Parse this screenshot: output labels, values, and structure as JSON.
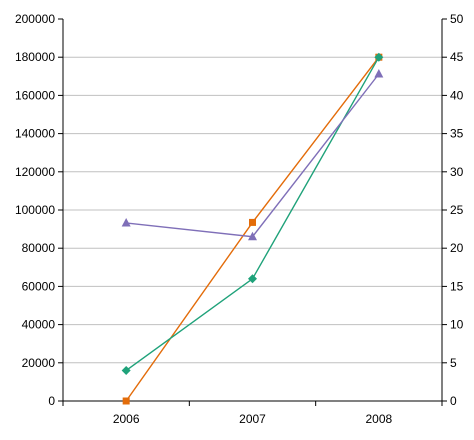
{
  "chart_data": {
    "type": "line",
    "categories": [
      "2006",
      "2007",
      "2008"
    ],
    "y_left": {
      "min": 0,
      "max": 200000,
      "step": 20000,
      "ticks": [
        "0",
        "20000",
        "40000",
        "60000",
        "80000",
        "100000",
        "120000",
        "140000",
        "160000",
        "180000",
        "200000"
      ]
    },
    "y_right": {
      "min": 0,
      "max": 50,
      "step": 5,
      "ticks": [
        "0",
        "5",
        "10",
        "15",
        "20",
        "25",
        "30",
        "35",
        "40",
        "45",
        "50"
      ]
    },
    "grid": true,
    "legend": "none",
    "series": [
      {
        "axis": "left",
        "marker": "square",
        "color": "#E36C0A",
        "values": [
          0,
          93500,
          180000
        ]
      },
      {
        "axis": "right",
        "marker": "diamond",
        "color": "#1FA27A",
        "values": [
          4,
          16,
          45
        ]
      },
      {
        "axis": "right",
        "marker": "triangle",
        "color": "#7F6FB8",
        "values": [
          23.3,
          21.5,
          42.8
        ]
      }
    ]
  }
}
